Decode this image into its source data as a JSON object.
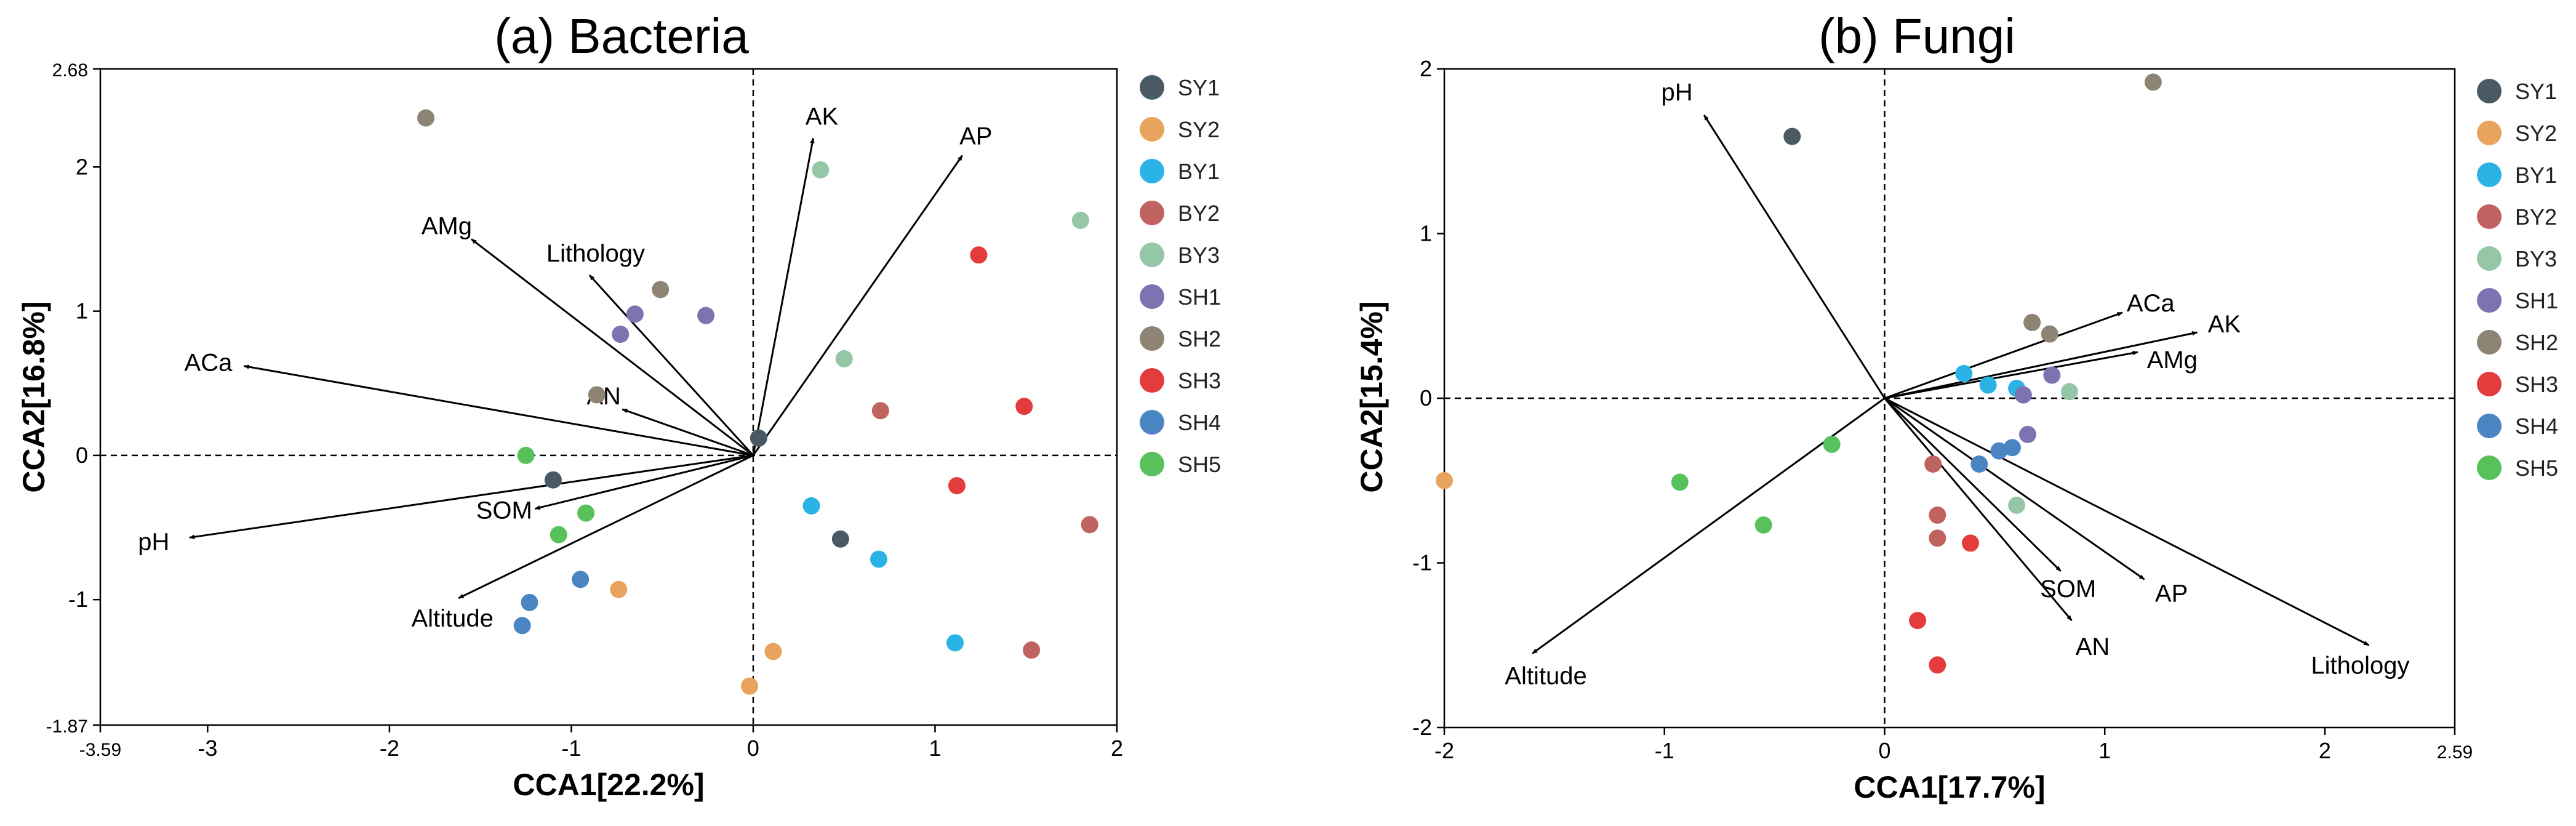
{
  "colors": {
    "SY1": "#4a5a64",
    "SY2": "#e8a45c",
    "BY1": "#2bb3e6",
    "BY2": "#c0625f",
    "BY3": "#95c7a7",
    "SH1": "#7b74b0",
    "SH2": "#8e8474",
    "SH3": "#e43c3c",
    "SH4": "#4a84c2",
    "SH5": "#58c15c"
  },
  "legend": [
    "SY1",
    "SY2",
    "BY1",
    "BY2",
    "BY3",
    "SH1",
    "SH2",
    "SH3",
    "SH4",
    "SH5"
  ],
  "chart_data": [
    {
      "type": "scatter",
      "title": "(a) Bacteria",
      "xlabel": "CCA1[22.2%]",
      "ylabel": "CCA2[16.8%]",
      "xlim": [
        -3.59,
        2
      ],
      "ylim": [
        -1.87,
        2.68
      ],
      "xticks": [
        -3.59,
        -3,
        -2,
        -1,
        0,
        1,
        2
      ],
      "xtick_labels": [
        "-3.59",
        "-3",
        "-2",
        "-1",
        "0",
        "1",
        "2"
      ],
      "yticks": [
        -1.87,
        -1,
        0,
        1,
        2,
        2.68
      ],
      "ytick_labels": [
        "-1.87",
        "-1",
        "0",
        "1",
        "2",
        "2.68"
      ],
      "arrows": [
        {
          "label": "AK",
          "x": 0.33,
          "y": 2.2
        },
        {
          "label": "AP",
          "x": 1.15,
          "y": 2.08
        },
        {
          "label": "AMg",
          "x": -1.55,
          "y": 1.5
        },
        {
          "label": "Lithology",
          "x": -0.9,
          "y": 1.25
        },
        {
          "label": "ACa",
          "x": -2.8,
          "y": 0.62
        },
        {
          "label": "AN",
          "x": -0.72,
          "y": 0.32
        },
        {
          "label": "pH",
          "x": -3.1,
          "y": -0.57
        },
        {
          "label": "SOM",
          "x": -1.2,
          "y": -0.37
        },
        {
          "label": "Altitude",
          "x": -1.62,
          "y": -0.99
        }
      ],
      "points": [
        {
          "group": "SY1",
          "x": 0.03,
          "y": 0.12
        },
        {
          "group": "SY1",
          "x": -1.1,
          "y": -0.17
        },
        {
          "group": "SY1",
          "x": 0.48,
          "y": -0.58
        },
        {
          "group": "SY2",
          "x": -0.74,
          "y": -0.93
        },
        {
          "group": "SY2",
          "x": 0.11,
          "y": -1.36
        },
        {
          "group": "SY2",
          "x": -0.02,
          "y": -1.6
        },
        {
          "group": "BY1",
          "x": 0.32,
          "y": -0.35
        },
        {
          "group": "BY1",
          "x": 0.69,
          "y": -0.72
        },
        {
          "group": "BY1",
          "x": 1.11,
          "y": -1.3
        },
        {
          "group": "BY2",
          "x": 0.7,
          "y": 0.31
        },
        {
          "group": "BY2",
          "x": 1.85,
          "y": -0.48
        },
        {
          "group": "BY2",
          "x": 1.53,
          "y": -1.35
        },
        {
          "group": "BY3",
          "x": 0.37,
          "y": 1.98
        },
        {
          "group": "BY3",
          "x": 0.5,
          "y": 0.67
        },
        {
          "group": "BY3",
          "x": 1.8,
          "y": 1.63
        },
        {
          "group": "SH1",
          "x": -0.65,
          "y": 0.98
        },
        {
          "group": "SH1",
          "x": -0.26,
          "y": 0.97
        },
        {
          "group": "SH1",
          "x": -0.73,
          "y": 0.84
        },
        {
          "group": "SH2",
          "x": -1.8,
          "y": 2.34
        },
        {
          "group": "SH2",
          "x": -0.51,
          "y": 1.15
        },
        {
          "group": "SH2",
          "x": -0.86,
          "y": 0.42
        },
        {
          "group": "SH3",
          "x": 1.24,
          "y": 1.39
        },
        {
          "group": "SH3",
          "x": 1.49,
          "y": 0.34
        },
        {
          "group": "SH3",
          "x": 1.12,
          "y": -0.21
        },
        {
          "group": "SH4",
          "x": -0.95,
          "y": -0.86
        },
        {
          "group": "SH4",
          "x": -1.23,
          "y": -1.02
        },
        {
          "group": "SH4",
          "x": -1.27,
          "y": -1.18
        },
        {
          "group": "SH5",
          "x": -1.25,
          "y": 0.0
        },
        {
          "group": "SH5",
          "x": -0.92,
          "y": -0.4
        },
        {
          "group": "SH5",
          "x": -1.07,
          "y": -0.55
        }
      ]
    },
    {
      "type": "scatter",
      "title": "(b) Fungi",
      "xlabel": "CCA1[17.7%]",
      "ylabel": "CCA2[15.4%]",
      "xlim": [
        -2,
        2.59
      ],
      "ylim": [
        -2,
        2
      ],
      "xticks": [
        -2,
        -1,
        0,
        1,
        2,
        2.59
      ],
      "xtick_labels": [
        "-2",
        "-1",
        "0",
        "1",
        "2",
        "2.59"
      ],
      "yticks": [
        -2,
        -1,
        0,
        1,
        2
      ],
      "ytick_labels": [
        "-2",
        "-1",
        "0",
        "1",
        "2"
      ],
      "arrows": [
        {
          "label": "pH",
          "x": -0.82,
          "y": 1.72
        },
        {
          "label": "ACa",
          "x": 1.08,
          "y": 0.52
        },
        {
          "label": "AK",
          "x": 1.42,
          "y": 0.4
        },
        {
          "label": "AMg",
          "x": 1.15,
          "y": 0.28
        },
        {
          "label": "Altitude",
          "x": -1.6,
          "y": -1.55
        },
        {
          "label": "SOM",
          "x": 0.8,
          "y": -1.05
        },
        {
          "label": "AP",
          "x": 1.18,
          "y": -1.1
        },
        {
          "label": "AN",
          "x": 0.85,
          "y": -1.35
        },
        {
          "label": "Lithology",
          "x": 2.2,
          "y": -1.5
        }
      ],
      "points": [
        {
          "group": "SY1",
          "x": -0.42,
          "y": 1.59
        },
        {
          "group": "SY2",
          "x": -2.0,
          "y": -0.5
        },
        {
          "group": "BY1",
          "x": 0.36,
          "y": 0.15
        },
        {
          "group": "BY1",
          "x": 0.47,
          "y": 0.08
        },
        {
          "group": "BY1",
          "x": 0.6,
          "y": 0.06
        },
        {
          "group": "BY2",
          "x": 0.22,
          "y": -0.4
        },
        {
          "group": "BY2",
          "x": 0.24,
          "y": -0.71
        },
        {
          "group": "BY2",
          "x": 0.24,
          "y": -0.85
        },
        {
          "group": "BY3",
          "x": 0.84,
          "y": 0.04
        },
        {
          "group": "BY3",
          "x": 0.6,
          "y": -0.65
        },
        {
          "group": "SH1",
          "x": 0.76,
          "y": 0.14
        },
        {
          "group": "SH1",
          "x": 0.63,
          "y": 0.02
        },
        {
          "group": "SH1",
          "x": 0.65,
          "y": -0.22
        },
        {
          "group": "SH2",
          "x": 1.22,
          "y": 1.92
        },
        {
          "group": "SH2",
          "x": 0.67,
          "y": 0.46
        },
        {
          "group": "SH2",
          "x": 0.75,
          "y": 0.39
        },
        {
          "group": "SH3",
          "x": 0.39,
          "y": -0.88
        },
        {
          "group": "SH3",
          "x": 0.15,
          "y": -1.35
        },
        {
          "group": "SH3",
          "x": 0.24,
          "y": -1.62
        },
        {
          "group": "SH4",
          "x": 0.43,
          "y": -0.4
        },
        {
          "group": "SH4",
          "x": 0.52,
          "y": -0.32
        },
        {
          "group": "SH4",
          "x": 0.58,
          "y": -0.3
        },
        {
          "group": "SH5",
          "x": -0.24,
          "y": -0.28
        },
        {
          "group": "SH5",
          "x": -0.93,
          "y": -0.51
        },
        {
          "group": "SH5",
          "x": -0.55,
          "y": -0.77
        }
      ]
    }
  ]
}
